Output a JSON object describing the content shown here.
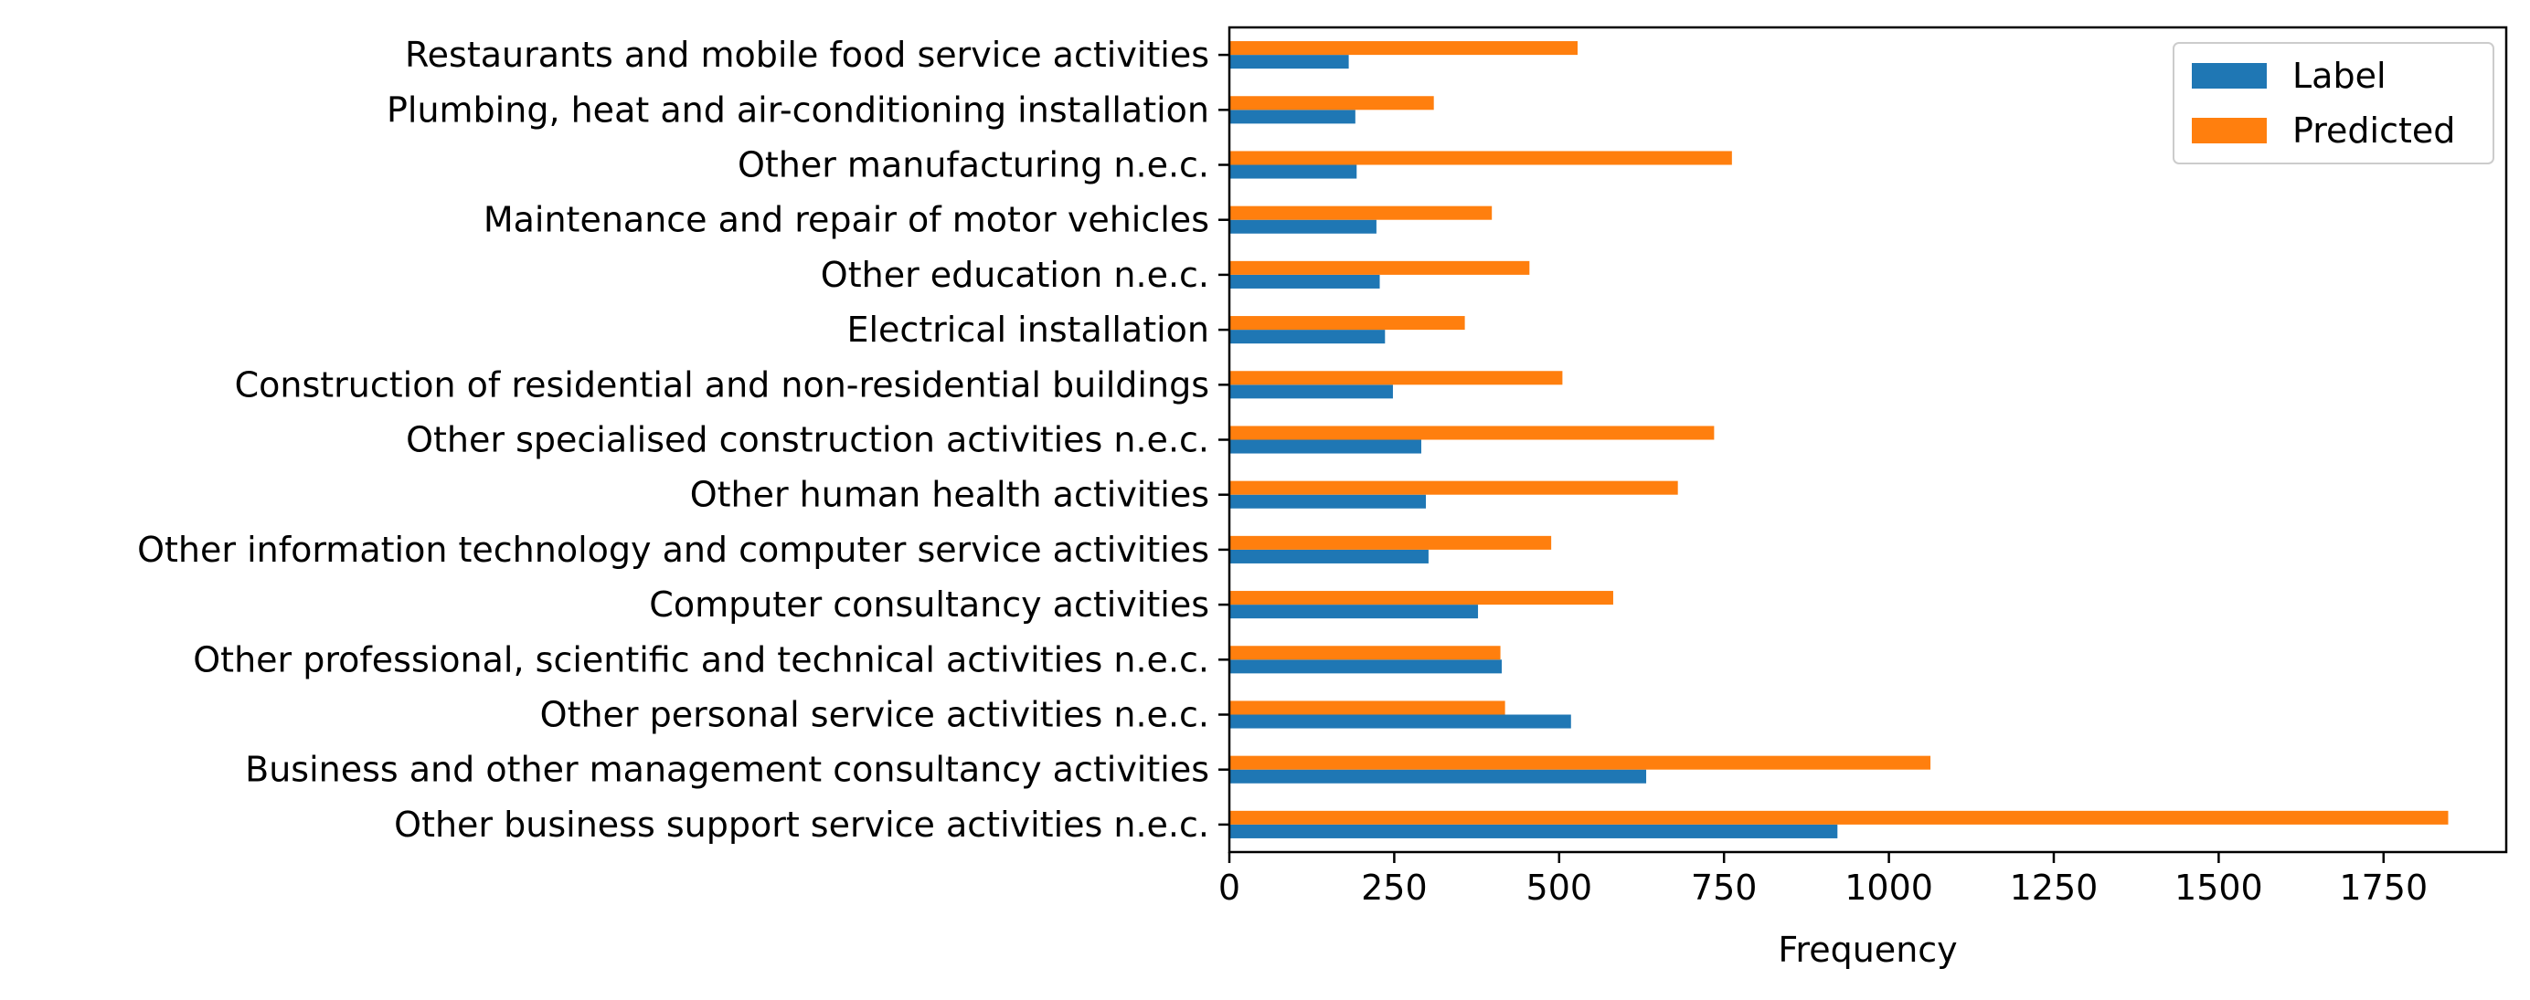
{
  "chart_data": {
    "type": "bar",
    "orientation": "horizontal",
    "xlabel": "Frequency",
    "ylabel": "",
    "title": "",
    "xlim": [
      0,
      1936
    ],
    "xticks": [
      0,
      250,
      500,
      750,
      1000,
      1250,
      1500,
      1750
    ],
    "grid": false,
    "legend_position": "top-right",
    "categories": [
      "Other business support service activities n.e.c.",
      "Business and other management consultancy activities",
      "Other personal service activities n.e.c.",
      "Other professional, scientific and technical activities n.e.c.",
      "Computer consultancy activities",
      "Other information technology and computer service activities",
      "Other human health activities",
      "Other specialised construction activities n.e.c.",
      "Construction of residential and non-residential buildings",
      "Electrical installation",
      "Other education n.e.c.",
      "Maintenance and repair of motor vehicles",
      "Other manufacturing n.e.c.",
      "Plumbing, heat and air-conditioning installation",
      "Restaurants and mobile food service activities"
    ],
    "series": [
      {
        "name": "Label",
        "color": "#1f77b4",
        "values": [
          922,
          632,
          518,
          413,
          377,
          302,
          298,
          291,
          248,
          236,
          228,
          223,
          193,
          191,
          181
        ]
      },
      {
        "name": "Predicted",
        "color": "#ff7f0e",
        "values": [
          1848,
          1063,
          418,
          411,
          582,
          488,
          680,
          735,
          505,
          357,
          455,
          398,
          762,
          310,
          528
        ]
      }
    ]
  }
}
